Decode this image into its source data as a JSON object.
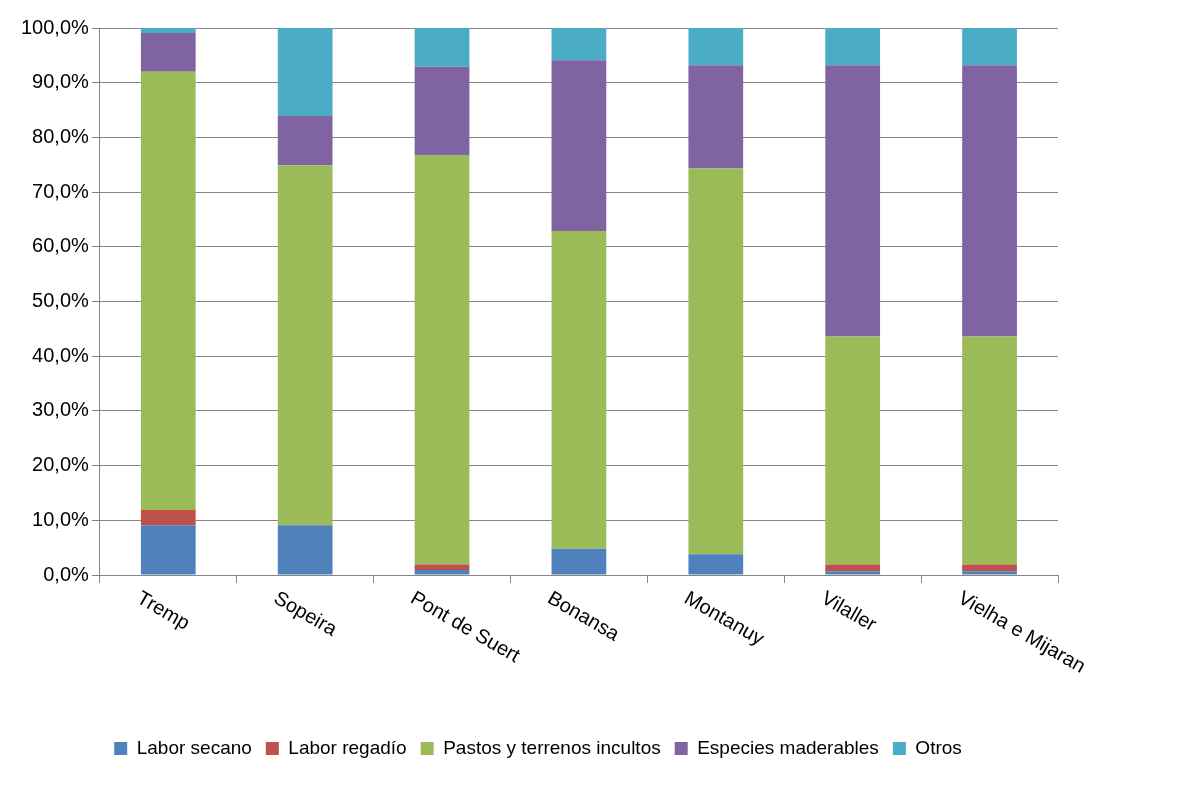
{
  "chart_data": {
    "type": "bar",
    "stacked": true,
    "categories": [
      "Tremp",
      "Sopeira",
      "Pont de Suert",
      "Bonansa",
      "Montanuy",
      "Vilaller",
      "Vielha e Mijaran"
    ],
    "series": [
      {
        "name": "Labor secano",
        "color": "#4f81bd",
        "values": [
          9.1,
          9.1,
          0.9,
          4.8,
          3.8,
          0.7,
          0.7
        ]
      },
      {
        "name": "Labor regadío",
        "color": "#c0504d",
        "values": [
          2.8,
          0,
          1.0,
          0,
          0,
          1.2,
          1.2
        ]
      },
      {
        "name": "Pastos y terrenos incultos",
        "color": "#9bbb59",
        "values": [
          80.1,
          65.8,
          74.9,
          58.1,
          70.5,
          41.7,
          41.7
        ]
      },
      {
        "name": "Especies maderables",
        "color": "#8064a2",
        "values": [
          7.1,
          9.0,
          16.1,
          31.2,
          18.9,
          49.6,
          49.6
        ]
      },
      {
        "name": "Otros",
        "color": "#4bacc6",
        "values": [
          0.9,
          16.1,
          7.1,
          5.9,
          6.8,
          6.8,
          6.8
        ]
      }
    ],
    "ylim": [
      0,
      100
    ],
    "yticks": [
      {
        "value": 0,
        "label": "0,0%"
      },
      {
        "value": 10,
        "label": "10,0%"
      },
      {
        "value": 20,
        "label": "20,0%"
      },
      {
        "value": 30,
        "label": "30,0%"
      },
      {
        "value": 40,
        "label": "40,0%"
      },
      {
        "value": 50,
        "label": "50,0%"
      },
      {
        "value": 60,
        "label": "60,0%"
      },
      {
        "value": 70,
        "label": "70,0%"
      },
      {
        "value": 80,
        "label": "80,0%"
      },
      {
        "value": 90,
        "label": "90,0%"
      },
      {
        "value": 100,
        "label": "100,0%"
      }
    ],
    "grid": "y",
    "legend": "bottom"
  }
}
